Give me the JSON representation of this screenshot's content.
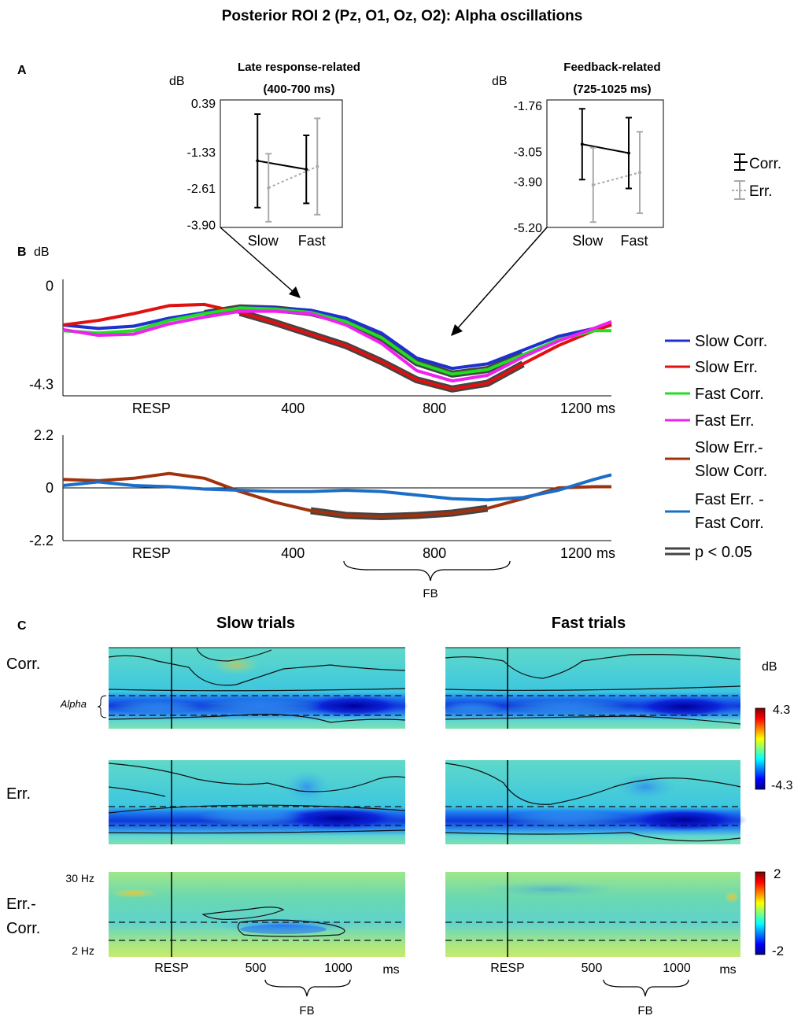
{
  "figure_title": "Posterior ROI 2 (Pz, O1, Oz, O2): Alpha oscillations",
  "panel_labels": {
    "a": "A",
    "b": "B",
    "c": "C"
  },
  "unit_db": "dB",
  "unit_ms": "ms",
  "legend_a": {
    "corr": "Corr.",
    "err": "Err."
  },
  "legend_b": {
    "slow_corr": "Slow Corr.",
    "slow_err": "Slow Err.",
    "fast_corr": "Fast Corr.",
    "fast_err": "Fast Err.",
    "slow_diff_1": "Slow Err.-",
    "slow_diff_2": "Slow Corr.",
    "fast_diff_1": "Fast Err. -",
    "fast_diff_2": "Fast Corr.",
    "sig": "p < 0.05"
  },
  "colors": {
    "slow_corr": "#1f2fd0",
    "slow_err": "#e01010",
    "fast_corr": "#22dd22",
    "fast_err": "#ee22ee",
    "slow_diff": "#a0320e",
    "fast_diff": "#1a6ec8",
    "sig": "#444444",
    "corr_err_bar": "#000000",
    "err_err_bar": "#aaaaaa"
  },
  "x_ticks_b": [
    "RESP",
    "400",
    "800",
    "1200"
  ],
  "fb_label": "FB",
  "panel_c": {
    "col_titles": [
      "Slow trials",
      "Fast trials"
    ],
    "row_labels": [
      "Corr.",
      "Err.",
      "Err.-",
      "Corr."
    ],
    "alpha_label": "Alpha",
    "freq_top": "30 Hz",
    "freq_bottom": "2 Hz",
    "x_ticks": [
      "RESP",
      "500",
      "1000"
    ],
    "cbar1_max": "4.3",
    "cbar1_min": "-4.3",
    "cbar2_max": "2",
    "cbar2_min": "-2"
  },
  "chart_data": [
    {
      "type": "line",
      "panel": "A-left",
      "title_1": "Late response-related",
      "title_2": "(400-700  ms)",
      "ylabel": "dB",
      "y_ticks": [
        "0.39",
        "-1.33",
        "-2.61",
        "-3.90"
      ],
      "ylim": [
        -4.0,
        0.5
      ],
      "categories": [
        "Slow",
        "Fast"
      ],
      "series": [
        {
          "name": "Corr.",
          "values": [
            -1.65,
            -1.95
          ],
          "err": [
            1.65,
            1.2
          ]
        },
        {
          "name": "Err.",
          "values": [
            -2.6,
            -1.85
          ],
          "err": [
            1.2,
            1.7
          ]
        }
      ]
    },
    {
      "type": "line",
      "panel": "A-right",
      "title_1": "Feedback-related",
      "title_2": "(725-1025  ms)",
      "ylabel": "dB",
      "y_ticks": [
        "-1.76",
        "-3.05",
        "-3.90",
        "-5.20"
      ],
      "ylim": [
        -5.2,
        -1.6
      ],
      "categories": [
        "Slow",
        "Fast"
      ],
      "series": [
        {
          "name": "Corr.",
          "values": [
            -2.85,
            -3.1
          ],
          "err": [
            1.0,
            1.0
          ]
        },
        {
          "name": "Err.",
          "values": [
            -4.0,
            -3.65
          ],
          "err": [
            1.05,
            1.15
          ]
        }
      ]
    },
    {
      "type": "line",
      "panel": "B-top",
      "ylabel": "dB",
      "y_ticks": [
        "0",
        "-4.3"
      ],
      "ylim": [
        -4.8,
        0.3
      ],
      "xlim": [
        -250,
        1300
      ],
      "x": [
        -250,
        -150,
        -50,
        50,
        150,
        250,
        350,
        450,
        550,
        650,
        750,
        850,
        950,
        1050,
        1150,
        1250,
        1300
      ],
      "series": [
        {
          "name": "Slow Corr.",
          "values": [
            -1.7,
            -1.85,
            -1.75,
            -1.4,
            -1.15,
            -0.95,
            -0.95,
            -1.05,
            -1.4,
            -2.05,
            -3.15,
            -3.6,
            -3.4,
            -2.8,
            -2.2,
            -1.85,
            -1.65
          ]
        },
        {
          "name": "Slow Err.",
          "values": [
            -1.7,
            -1.5,
            -1.2,
            -0.85,
            -0.8,
            -1.15,
            -1.6,
            -2.1,
            -2.6,
            -3.3,
            -4.1,
            -4.5,
            -4.25,
            -3.4,
            -2.6,
            -1.95,
            -1.7
          ]
        },
        {
          "name": "Fast Corr.",
          "values": [
            -1.95,
            -2.05,
            -1.95,
            -1.5,
            -1.2,
            -0.95,
            -1.0,
            -1.15,
            -1.55,
            -2.25,
            -3.35,
            -3.85,
            -3.65,
            -3.0,
            -2.35,
            -1.95,
            -1.95
          ]
        },
        {
          "name": "Fast Err.",
          "values": [
            -1.9,
            -2.15,
            -2.1,
            -1.65,
            -1.35,
            -1.1,
            -1.1,
            -1.2,
            -1.7,
            -2.5,
            -3.7,
            -4.15,
            -3.9,
            -3.1,
            -2.4,
            -1.85,
            -1.55
          ]
        }
      ],
      "significance": [
        {
          "name": "Slow Err.",
          "ranges": [
            [
              200,
              1100
            ]
          ]
        },
        {
          "name": "Fast Corr.",
          "ranges": [
            [
              150,
              1050
            ]
          ]
        }
      ]
    },
    {
      "type": "line",
      "panel": "B-bottom",
      "y_ticks": [
        "2.2",
        "0",
        "-2.2"
      ],
      "ylim": [
        -2.2,
        2.2
      ],
      "xlim": [
        -250,
        1300
      ],
      "x": [
        -250,
        -150,
        -50,
        50,
        150,
        250,
        350,
        450,
        550,
        650,
        750,
        850,
        950,
        1050,
        1150,
        1250,
        1300
      ],
      "series": [
        {
          "name": "Slow Err.- Slow Corr.",
          "values": [
            0.35,
            0.3,
            0.4,
            0.6,
            0.4,
            -0.15,
            -0.6,
            -0.95,
            -1.15,
            -1.2,
            -1.15,
            -1.05,
            -0.85,
            -0.45,
            0.0,
            0.05,
            0.05
          ]
        },
        {
          "name": "Fast Err. - Fast Corr.",
          "values": [
            0.1,
            0.25,
            0.1,
            0.05,
            -0.05,
            -0.1,
            -0.15,
            -0.15,
            -0.1,
            -0.15,
            -0.3,
            -0.45,
            -0.5,
            -0.4,
            -0.1,
            0.35,
            0.55
          ]
        }
      ],
      "significance": [
        {
          "name": "Slow Err.- Slow Corr.",
          "ranges": [
            [
              400,
              1000
            ]
          ]
        }
      ]
    }
  ]
}
